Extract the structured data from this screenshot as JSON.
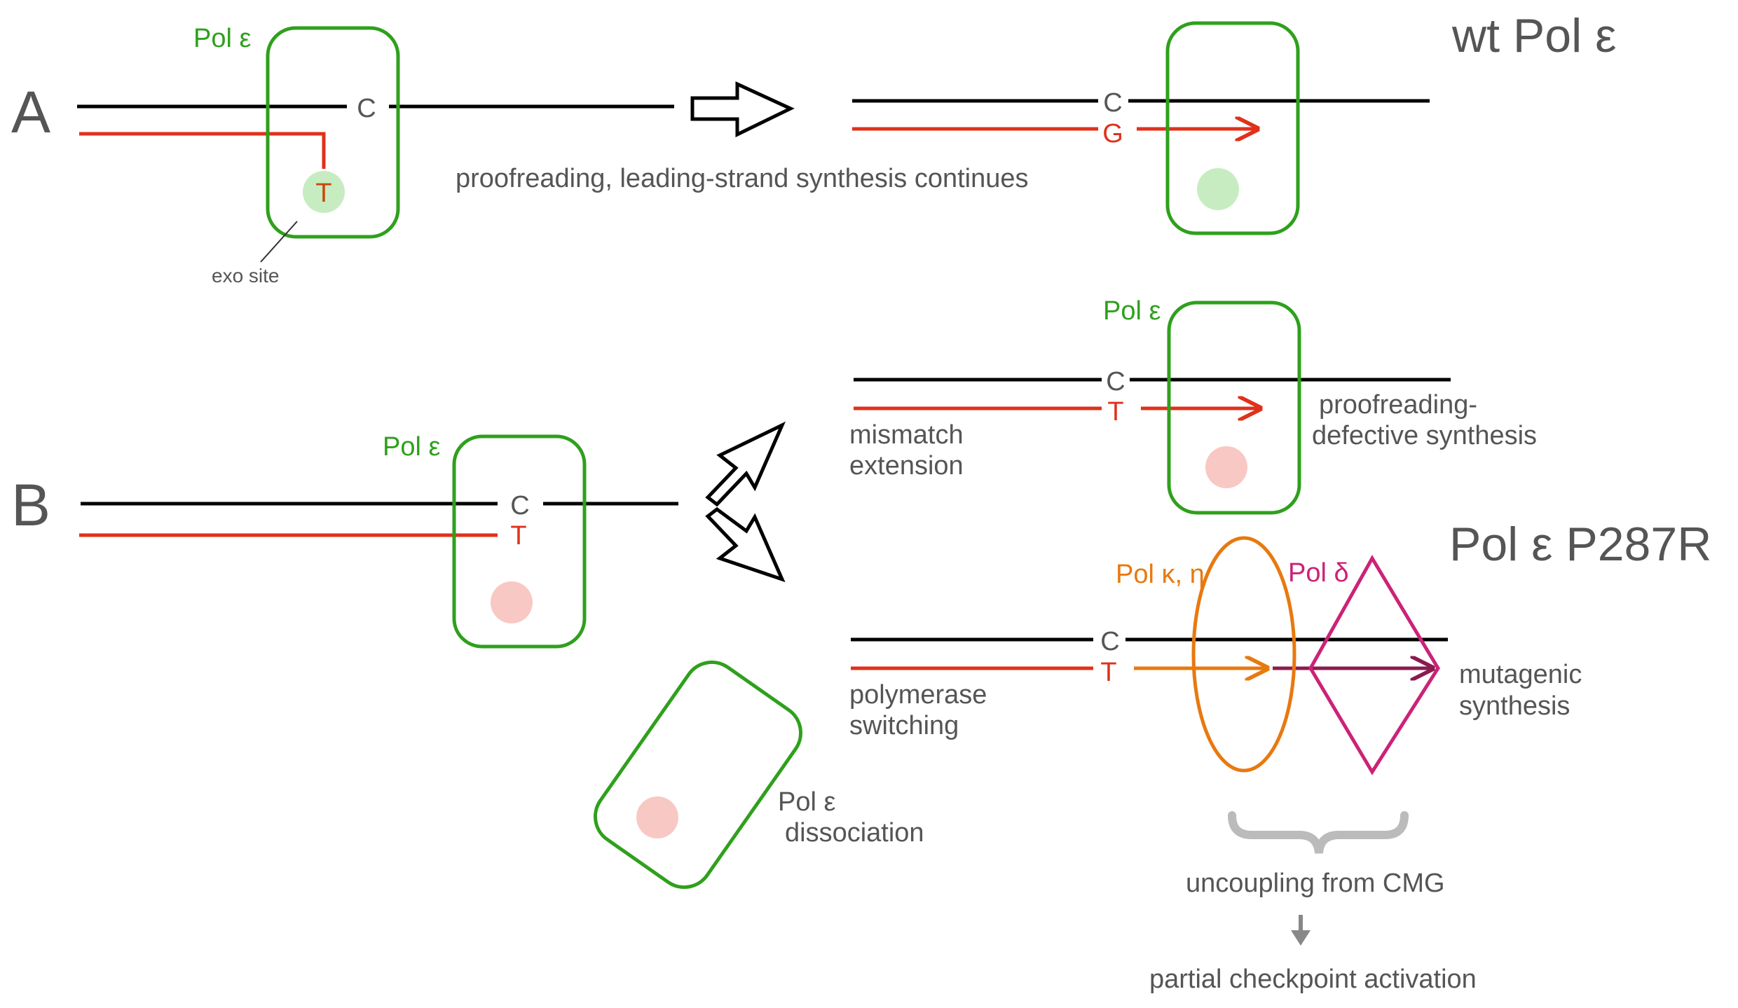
{
  "colors": {
    "polymerase_green": "#2fa01c",
    "template_strand": "#000000",
    "nascent_strand": "#e0311b",
    "exo_site_active": "#c8ecc2",
    "exo_site_defective": "#f8c8c4",
    "pol_kappa_eta": "#e8790f",
    "pol_delta": "#cc2277",
    "delta_arrow": "#8b1a4f",
    "text_gray": "#555555",
    "brace_gray": "#bbbbbb"
  },
  "panel_a": {
    "letter": "A",
    "title": "wt Pol ε",
    "pol_label": "Pol ε",
    "template_base": "C",
    "mismatch_base": "T",
    "exo_site_label": "exo site",
    "transition_label": "proofreading, leading-strand synthesis continues",
    "result_template_base": "C",
    "result_nascent_base": "G"
  },
  "panel_b": {
    "letter": "B",
    "title": "Pol ε P287R",
    "pol_label": "Pol ε",
    "template_base": "C",
    "mismatch_base": "T",
    "upper_path": {
      "pol_label": "Pol ε",
      "label_line1": "mismatch",
      "label_line2": "extension",
      "template_base": "C",
      "nascent_base": "T",
      "outcome_line1": "proofreading-",
      "outcome_line2": "defective synthesis"
    },
    "lower_path": {
      "label_line1": "polymerase",
      "label_line2": "switching",
      "template_base": "C",
      "nascent_base": "T",
      "pol_kappa_eta_label": "Pol κ, η",
      "pol_delta_label": "Pol δ",
      "outcome_line1": "mutagenic",
      "outcome_line2": "synthesis",
      "dissociation_line1": "Pol ε",
      "dissociation_line2": "dissociation",
      "uncoupling_label": "uncoupling from CMG",
      "checkpoint_label": "partial checkpoint activation"
    }
  }
}
